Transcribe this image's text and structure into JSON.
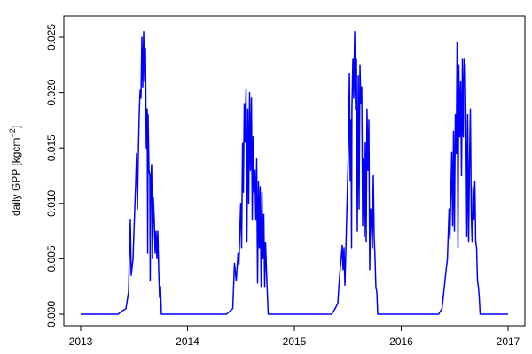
{
  "chart_data": {
    "type": "line",
    "title": "",
    "xlabel": "",
    "ylabel": "daily GPP [kgcm",
    "ylabel_sup": "−2",
    "ylabel_end": "]",
    "xlim": [
      2013,
      2017
    ],
    "ylim": [
      0,
      0.025
    ],
    "xticks": [
      2013,
      2014,
      2015,
      2016,
      2017
    ],
    "xtick_labels": [
      "2013",
      "2014",
      "2015",
      "2016",
      "2017"
    ],
    "yticks": [
      0,
      0.005,
      0.01,
      0.015,
      0.02,
      0.025
    ],
    "ytick_labels": [
      "0.000",
      "0.005",
      "0.010",
      "0.015",
      "0.020",
      "0.025"
    ],
    "grid": false,
    "line_color": "#0000ff",
    "series": [
      {
        "points": [
          [
            2013.0,
            0
          ],
          [
            2013.349,
            0
          ],
          [
            2013.39,
            0.0003
          ],
          [
            2013.423,
            0.0005
          ],
          [
            2013.448,
            0.002
          ],
          [
            2013.465,
            0.0085
          ],
          [
            2013.473,
            0.0035
          ],
          [
            2013.49,
            0.005
          ],
          [
            2013.515,
            0.012
          ],
          [
            2013.523,
            0.0145
          ],
          [
            2013.531,
            0.0095
          ],
          [
            2013.539,
            0.014
          ],
          [
            2013.548,
            0.018
          ],
          [
            2013.556,
            0.0202
          ],
          [
            2013.564,
            0.0195
          ],
          [
            2013.573,
            0.025
          ],
          [
            2013.581,
            0.0205
          ],
          [
            2013.589,
            0.0255
          ],
          [
            2013.598,
            0.021
          ],
          [
            2013.606,
            0.024
          ],
          [
            2013.614,
            0.015
          ],
          [
            2013.622,
            0.0185
          ],
          [
            2013.627,
            0.0055
          ],
          [
            2013.631,
            0.018
          ],
          [
            2013.639,
            0.013
          ],
          [
            2013.647,
            0.0125
          ],
          [
            2013.651,
            0.003
          ],
          [
            2013.656,
            0.012
          ],
          [
            2013.664,
            0.0135
          ],
          [
            2013.672,
            0.005
          ],
          [
            2013.68,
            0.0105
          ],
          [
            2013.689,
            0.0085
          ],
          [
            2013.697,
            0.0055
          ],
          [
            2013.705,
            0.0075
          ],
          [
            2013.714,
            0.005
          ],
          [
            2013.722,
            0.0075
          ],
          [
            2013.73,
            0.004
          ],
          [
            2013.739,
            0.0015
          ],
          [
            2013.747,
            0.0025
          ],
          [
            2013.755,
            0
          ],
          [
            2014.365,
            0
          ],
          [
            2014.423,
            0.0005
          ],
          [
            2014.44,
            0.0046
          ],
          [
            2014.456,
            0.003
          ],
          [
            2014.473,
            0.0055
          ],
          [
            2014.481,
            0.0045
          ],
          [
            2014.49,
            0.0075
          ],
          [
            2014.498,
            0.01
          ],
          [
            2014.506,
            0.006
          ],
          [
            2014.515,
            0.0154
          ],
          [
            2014.523,
            0.011
          ],
          [
            2014.531,
            0.019
          ],
          [
            2014.539,
            0.0155
          ],
          [
            2014.548,
            0.0203
          ],
          [
            2014.556,
            0.0065
          ],
          [
            2014.564,
            0.0185
          ],
          [
            2014.573,
            0.01
          ],
          [
            2014.581,
            0.02
          ],
          [
            2014.589,
            0.013
          ],
          [
            2014.598,
            0.0195
          ],
          [
            2014.606,
            0.0085
          ],
          [
            2014.614,
            0.016
          ],
          [
            2014.622,
            0.011
          ],
          [
            2014.631,
            0.013
          ],
          [
            2014.639,
            0.0085
          ],
          [
            2014.647,
            0.014
          ],
          [
            2014.656,
            0.0028
          ],
          [
            2014.664,
            0.012
          ],
          [
            2014.672,
            0.006
          ],
          [
            2014.68,
            0.0115
          ],
          [
            2014.689,
            0.0025
          ],
          [
            2014.697,
            0.011
          ],
          [
            2014.705,
            0.005
          ],
          [
            2014.714,
            0.009
          ],
          [
            2014.722,
            0.0025
          ],
          [
            2014.73,
            0.0065
          ],
          [
            2014.739,
            0.004
          ],
          [
            2014.755,
            0
          ],
          [
            2015.349,
            0
          ],
          [
            2015.382,
            0.0005
          ],
          [
            2015.407,
            0.001
          ],
          [
            2015.423,
            0.0034
          ],
          [
            2015.448,
            0.0062
          ],
          [
            2015.456,
            0.004
          ],
          [
            2015.465,
            0.006
          ],
          [
            2015.473,
            0.0026
          ],
          [
            2015.481,
            0.0055
          ],
          [
            2015.49,
            0.0088
          ],
          [
            2015.506,
            0.015
          ],
          [
            2015.515,
            0.0217
          ],
          [
            2015.523,
            0.012
          ],
          [
            2015.531,
            0.0175
          ],
          [
            2015.535,
            0.006
          ],
          [
            2015.539,
            0.0185
          ],
          [
            2015.548,
            0.023
          ],
          [
            2015.556,
            0.0195
          ],
          [
            2015.564,
            0.0255
          ],
          [
            2015.573,
            0.0185
          ],
          [
            2015.581,
            0.023
          ],
          [
            2015.589,
            0.0075
          ],
          [
            2015.598,
            0.0215
          ],
          [
            2015.606,
            0.0095
          ],
          [
            2015.614,
            0.0225
          ],
          [
            2015.622,
            0.019
          ],
          [
            2015.631,
            0.0205
          ],
          [
            2015.639,
            0.008
          ],
          [
            2015.647,
            0.014
          ],
          [
            2015.656,
            0.007
          ],
          [
            2015.664,
            0.0155
          ],
          [
            2015.672,
            0.0065
          ],
          [
            2015.68,
            0.0185
          ],
          [
            2015.689,
            0.013
          ],
          [
            2015.697,
            0.0175
          ],
          [
            2015.705,
            0.004
          ],
          [
            2015.714,
            0.0095
          ],
          [
            2015.722,
            0.0085
          ],
          [
            2015.73,
            0.006
          ],
          [
            2015.739,
            0.0125
          ],
          [
            2015.747,
            0.007
          ],
          [
            2015.755,
            0.005
          ],
          [
            2015.763,
            0.0025
          ],
          [
            2015.772,
            0.002
          ],
          [
            2015.78,
            0
          ],
          [
            2016.349,
            0
          ],
          [
            2016.382,
            0.0005
          ],
          [
            2016.398,
            0.002
          ],
          [
            2016.415,
            0.0035
          ],
          [
            2016.432,
            0.005
          ],
          [
            2016.448,
            0.0095
          ],
          [
            2016.456,
            0.0068
          ],
          [
            2016.473,
            0.0146
          ],
          [
            2016.481,
            0.008
          ],
          [
            2016.49,
            0.0165
          ],
          [
            2016.498,
            0.0075
          ],
          [
            2016.506,
            0.018
          ],
          [
            2016.515,
            0.0145
          ],
          [
            2016.523,
            0.0245
          ],
          [
            2016.531,
            0.006
          ],
          [
            2016.539,
            0.0225
          ],
          [
            2016.548,
            0.016
          ],
          [
            2016.556,
            0.021
          ],
          [
            2016.564,
            0.0125
          ],
          [
            2016.573,
            0.023
          ],
          [
            2016.581,
            0.016
          ],
          [
            2016.589,
            0.023
          ],
          [
            2016.598,
            0.0225
          ],
          [
            2016.606,
            0.0175
          ],
          [
            2016.614,
            0.007
          ],
          [
            2016.622,
            0.018
          ],
          [
            2016.631,
            0.0065
          ],
          [
            2016.639,
            0.0135
          ],
          [
            2016.647,
            0.0185
          ],
          [
            2016.656,
            0.009
          ],
          [
            2016.664,
            0.0065
          ],
          [
            2016.672,
            0.0115
          ],
          [
            2016.68,
            0.0085
          ],
          [
            2016.689,
            0.012
          ],
          [
            2016.697,
            0.0065
          ],
          [
            2016.705,
            0.006
          ],
          [
            2016.714,
            0.003
          ],
          [
            2016.722,
            0.0025
          ],
          [
            2016.73,
            0.0015
          ],
          [
            2016.739,
            0
          ],
          [
            2017.0,
            0
          ]
        ]
      }
    ]
  }
}
